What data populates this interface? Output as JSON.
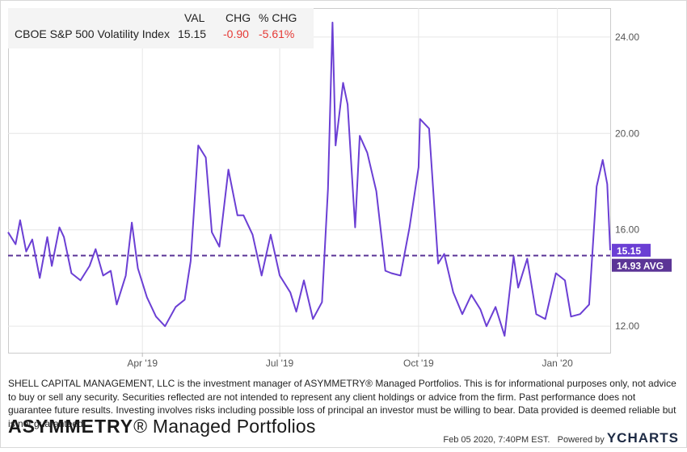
{
  "legend": {
    "headers": {
      "val": "VAL",
      "chg": "CHG",
      "pct": "% CHG"
    },
    "row": {
      "name": "CBOE S&P 500 Volatility Index",
      "val": "15.15",
      "chg": "-0.90",
      "pct": "-5.61%"
    }
  },
  "colors": {
    "series": "#6b3fd4",
    "negative": "#e53935",
    "grid": "#e6e6e6",
    "axis_text": "#555555"
  },
  "chart_data": {
    "type": "line",
    "title": "",
    "xlabel": "",
    "ylabel": "",
    "ylim": [
      10.9,
      25.2
    ],
    "yticks": [
      12,
      16,
      20,
      24
    ],
    "ytick_labels": [
      "12.00",
      "16.00",
      "20.00",
      "24.00"
    ],
    "xlim": [
      "2019-01-02",
      "2020-02-05"
    ],
    "xticks": [
      {
        "date": "2019-04-01",
        "label": "Apr '19"
      },
      {
        "date": "2019-07-01",
        "label": "Jul '19"
      },
      {
        "date": "2019-10-01",
        "label": "Oct '19"
      },
      {
        "date": "2020-01-01",
        "label": "Jan '20"
      }
    ],
    "grid": true,
    "series": [
      {
        "name": "CBOE S&P 500 Volatility Index",
        "last_label": "15.15",
        "x": [
          "2019-01-02",
          "2019-01-07",
          "2019-01-10",
          "2019-01-14",
          "2019-01-18",
          "2019-01-23",
          "2019-01-28",
          "2019-01-31",
          "2019-02-05",
          "2019-02-08",
          "2019-02-13",
          "2019-02-19",
          "2019-02-25",
          "2019-03-01",
          "2019-03-06",
          "2019-03-11",
          "2019-03-15",
          "2019-03-21",
          "2019-03-25",
          "2019-03-29",
          "2019-04-04",
          "2019-04-10",
          "2019-04-16",
          "2019-04-23",
          "2019-04-29",
          "2019-05-03",
          "2019-05-08",
          "2019-05-13",
          "2019-05-17",
          "2019-05-22",
          "2019-05-28",
          "2019-06-03",
          "2019-06-07",
          "2019-06-13",
          "2019-06-19",
          "2019-06-25",
          "2019-07-01",
          "2019-07-08",
          "2019-07-12",
          "2019-07-17",
          "2019-07-23",
          "2019-07-29",
          "2019-08-02",
          "2019-08-05",
          "2019-08-07",
          "2019-08-12",
          "2019-08-15",
          "2019-08-20",
          "2019-08-23",
          "2019-08-28",
          "2019-09-03",
          "2019-09-09",
          "2019-09-13",
          "2019-09-19",
          "2019-09-25",
          "2019-10-01",
          "2019-10-02",
          "2019-10-08",
          "2019-10-14",
          "2019-10-18",
          "2019-10-24",
          "2019-10-30",
          "2019-11-05",
          "2019-11-11",
          "2019-11-15",
          "2019-11-21",
          "2019-11-27",
          "2019-12-03",
          "2019-12-06",
          "2019-12-12",
          "2019-12-18",
          "2019-12-24",
          "2019-12-31",
          "2020-01-06",
          "2020-01-10",
          "2020-01-16",
          "2020-01-22",
          "2020-01-27",
          "2020-01-31",
          "2020-02-03",
          "2020-02-05"
        ],
        "values": [
          15.9,
          15.4,
          16.4,
          15.1,
          15.6,
          14.0,
          15.7,
          14.5,
          16.1,
          15.7,
          14.2,
          13.9,
          14.5,
          15.2,
          14.1,
          14.3,
          12.9,
          14.1,
          16.3,
          14.4,
          13.2,
          12.4,
          12.0,
          12.8,
          13.1,
          14.7,
          19.5,
          19.0,
          15.9,
          15.3,
          18.5,
          16.6,
          16.6,
          15.8,
          14.1,
          15.8,
          14.1,
          13.4,
          12.6,
          13.9,
          12.3,
          13.0,
          17.7,
          24.6,
          19.5,
          22.1,
          21.2,
          16.1,
          19.9,
          19.2,
          17.6,
          14.3,
          14.2,
          14.1,
          16.1,
          18.6,
          20.6,
          20.2,
          14.6,
          15.0,
          13.4,
          12.5,
          13.3,
          12.7,
          12.0,
          12.8,
          11.6,
          14.9,
          13.6,
          14.8,
          12.5,
          12.3,
          14.2,
          13.9,
          12.4,
          12.5,
          12.9,
          17.8,
          18.9,
          17.9,
          15.15
        ]
      },
      {
        "name": "AVG",
        "label": "14.93 AVG",
        "values": [
          14.93
        ],
        "style": "dashed"
      }
    ]
  },
  "disclaimer": "SHELL CAPITAL MANAGEMENT, LLC is the investment manager of ASYMMETRY® Managed Portfolios. This is for informational purposes only, not advice to buy or sell any security. Securities reflected are not intended to represent any client holdings or advice from the firm. Past performance does not guarantee future results. Investing involves risks including possible loss of principal an investor must be willing to bear. Data provided is deemed reliable but is not guaranteed.",
  "brand": {
    "name": "ASYMMETRY",
    "mark": "®",
    "rest": " Managed Portfolios"
  },
  "footer": {
    "timestamp": "Feb 05 2020, 7:40PM EST.",
    "powered_by": "Powered by",
    "ycharts": "YCHARTS"
  }
}
